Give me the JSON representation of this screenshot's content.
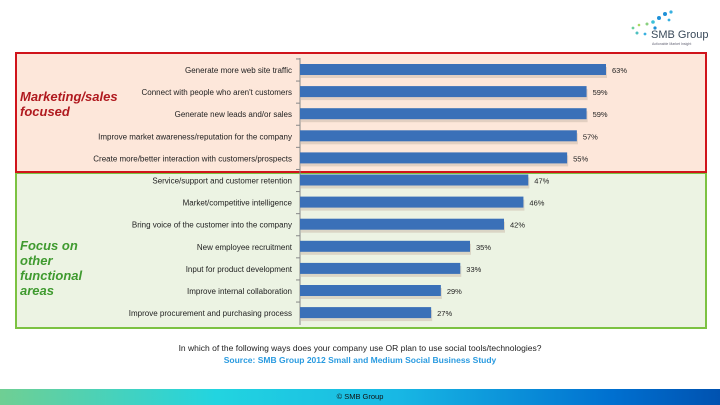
{
  "logo": {
    "name": "SMB Group",
    "tagline": "Actionable Market Insight"
  },
  "groups": {
    "marketing": "Marketing/sales focused",
    "other": "Focus on other functional areas"
  },
  "chart_data": {
    "type": "bar",
    "orientation": "horizontal",
    "categories": [
      "Generate more web site traffic",
      "Connect with people who aren't customers",
      "Generate new leads and/or sales",
      "Improve market awareness/reputation for the company",
      "Create more/better interaction with customers/prospects",
      "Service/support and customer retention",
      "Market/competitive intelligence",
      "Bring voice of the customer into the company",
      "New employee recruitment",
      "Input for product development",
      "Improve internal collaboration",
      "Improve procurement and purchasing process"
    ],
    "values": [
      63,
      59,
      59,
      57,
      55,
      47,
      46,
      42,
      35,
      33,
      29,
      27
    ],
    "value_labels": [
      "63%",
      "59%",
      "59%",
      "57%",
      "55%",
      "47%",
      "46%",
      "42%",
      "35%",
      "33%",
      "29%",
      "27%"
    ],
    "xlim": [
      0,
      100
    ],
    "unit": "%",
    "bar_color": "#3a70b8"
  },
  "question": "In which of the following ways does your company use OR plan to use social tools/technologies?",
  "source": "Source: SMB Group 2012 Small and Medium Social Business Study",
  "footer": "© SMB Group"
}
